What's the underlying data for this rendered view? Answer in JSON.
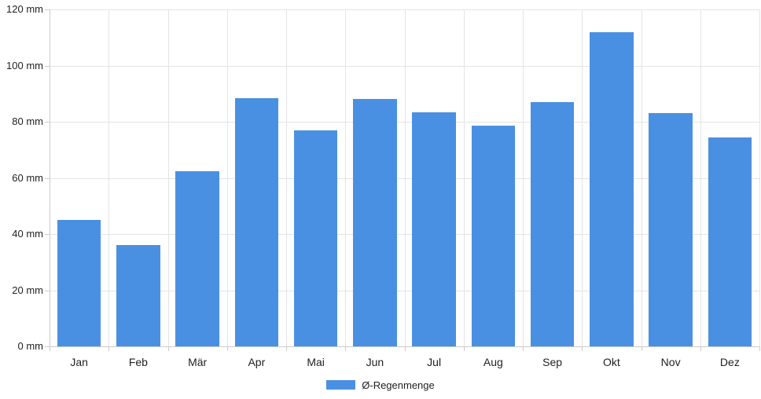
{
  "chart_data": {
    "type": "bar",
    "categories": [
      "Jan",
      "Feb",
      "Mär",
      "Apr",
      "Mai",
      "Jun",
      "Jul",
      "Aug",
      "Sep",
      "Okt",
      "Nov",
      "Dez"
    ],
    "series": [
      {
        "name": "Ø-Regenmenge",
        "color": "#4a90e2",
        "values": [
          45,
          36,
          62.5,
          88.5,
          77,
          88,
          83.5,
          78.5,
          87,
          112,
          83,
          74.5
        ]
      }
    ],
    "unit": "mm",
    "ylim": [
      0,
      120
    ],
    "y_tick_step": 20,
    "y_tick_labels": [
      "0 mm",
      "20 mm",
      "40 mm",
      "60 mm",
      "80 mm",
      "100 mm",
      "120 mm"
    ],
    "grid": true,
    "legend_position": "bottom"
  },
  "colors": {
    "bar": "#4a90e2",
    "gridline": "#e4e4e4",
    "axis_line": "#cccccc",
    "text": "#222222",
    "background": "#ffffff"
  }
}
